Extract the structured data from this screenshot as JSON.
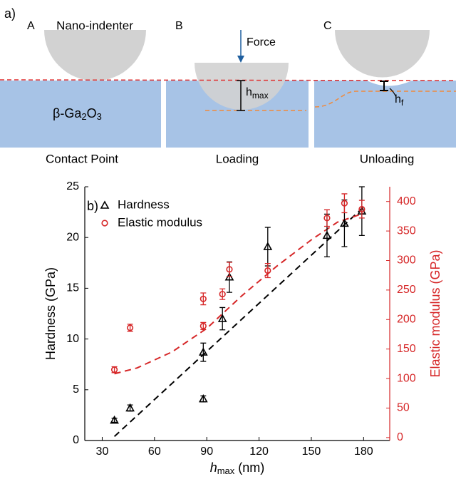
{
  "diagram": {
    "panel_label": "a)",
    "indenter": "Nano-indenter",
    "force": "Force",
    "h_max": {
      "base": "h",
      "sub": "max"
    },
    "h_f": {
      "base": "h",
      "sub": "f"
    },
    "material": {
      "base": "β-Ga",
      "sub1": "2",
      "mid": "O",
      "sub2": "3"
    },
    "steps": [
      {
        "letter": "A",
        "caption": "Contact Point"
      },
      {
        "letter": "B",
        "caption": "Loading"
      },
      {
        "letter": "C",
        "caption": "Unloading"
      }
    ]
  },
  "chart_data": {
    "type": "scatter",
    "panel_label": "b)",
    "x_label": {
      "base": "h",
      "sub": "max",
      "unit": "(nm)"
    },
    "y_label": "Hardness (GPa)",
    "y2_label": "Elastic modulus (GPa)",
    "y2_color": "#d62728",
    "xlim": [
      20,
      195
    ],
    "xticks": [
      30,
      60,
      90,
      120,
      150,
      180
    ],
    "ylim": [
      0,
      25
    ],
    "yticks": [
      0,
      5,
      10,
      15,
      20,
      25
    ],
    "y2lim": [
      -5,
      425
    ],
    "y2ticks": [
      0,
      50,
      100,
      150,
      200,
      250,
      300,
      350,
      400
    ],
    "series": [
      {
        "name": "Hardness",
        "color": "#000000",
        "marker": "triangle",
        "x": [
          37,
          46,
          88,
          88,
          99,
          103,
          125,
          159,
          169,
          179
        ],
        "values": [
          2.0,
          3.2,
          4.1,
          8.7,
          12.0,
          16.1,
          19.1,
          20.2,
          21.4,
          22.6
        ],
        "errors": [
          0.2,
          0.3,
          0.3,
          0.9,
          1.1,
          1.5,
          1.9,
          2.1,
          2.3,
          2.4
        ]
      },
      {
        "name": "Elastic modulus",
        "color": "#d62728",
        "marker": "circle",
        "axis": "y2",
        "x": [
          37,
          46,
          88,
          88,
          99,
          103,
          125,
          159,
          169,
          179
        ],
        "values": [
          115,
          186,
          189,
          235,
          243,
          285,
          283,
          372,
          397,
          387
        ],
        "errors": [
          5,
          6,
          6,
          10,
          9,
          12,
          12,
          14,
          16,
          15
        ]
      }
    ],
    "fits": [
      {
        "color": "#000000",
        "x": [
          37,
          180
        ],
        "values": [
          0.4,
          23.0
        ]
      },
      {
        "color": "#d62728",
        "axis": "y2",
        "x": [
          37,
          50,
          70,
          90,
          110,
          130,
          150,
          165,
          180
        ],
        "values": [
          108,
          118,
          145,
          185,
          240,
          290,
          335,
          365,
          380
        ]
      }
    ]
  }
}
